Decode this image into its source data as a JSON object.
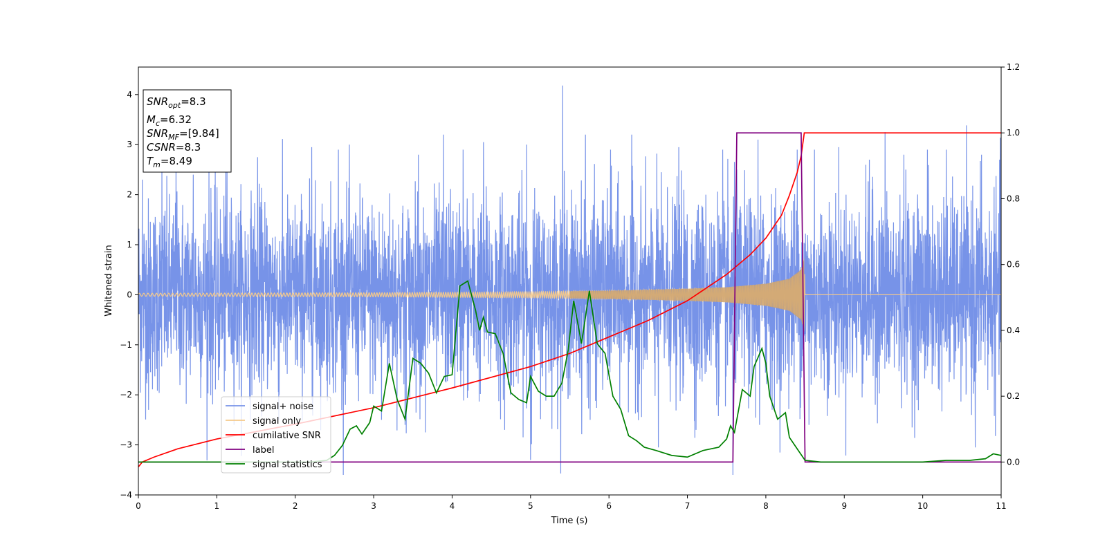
{
  "chart_data": {
    "type": "line",
    "xlabel": "Time (s)",
    "ylabel": "Whitened strain",
    "xlim": [
      0,
      11
    ],
    "ylim": [
      -4,
      4.55
    ],
    "y2lim": [
      -0.1,
      1.2
    ],
    "x_ticks": [
      0,
      1,
      2,
      3,
      4,
      5,
      6,
      7,
      8,
      9,
      10,
      11
    ],
    "y_ticks": [
      -4,
      -3,
      -2,
      -1,
      0,
      1,
      2,
      3,
      4
    ],
    "y2_ticks": [
      0.0,
      0.2,
      0.4,
      0.6,
      0.8,
      1.0,
      1.2
    ],
    "grid": false,
    "legend_position": "lower-left",
    "info_box": {
      "snr_opt_base": "SNR",
      "snr_opt_sub": "opt",
      "snr_opt_val": "=8.3",
      "mc_base": "M",
      "mc_sub": "c",
      "mc_val": "=6.32",
      "snr_mf_base": "SNR",
      "snr_mf_sub": "MF",
      "snr_mf_val": "=[9.84]",
      "csnr_base": "CSNR",
      "csnr_val": "=8.3",
      "tm_base": "T",
      "tm_sub": "m",
      "tm_val": "=8.49"
    },
    "series": [
      {
        "name": "signal+ noise",
        "color": "#7793e8",
        "axis": "left",
        "kind": "noise",
        "noise_std": 0.95,
        "spikes": [
          [
            0.05,
            2.3
          ],
          [
            0.13,
            -2.3
          ],
          [
            0.3,
            2.6
          ],
          [
            0.48,
            2.7
          ],
          [
            0.7,
            2.4
          ],
          [
            0.9,
            2.5
          ],
          [
            1.13,
            2.9
          ],
          [
            1.22,
            -2.6
          ],
          [
            1.52,
            2.75
          ],
          [
            1.79,
            -2.5
          ],
          [
            2.21,
            2.95
          ],
          [
            2.55,
            2.9
          ],
          [
            3.1,
            -2.5
          ],
          [
            3.4,
            -2.6
          ],
          [
            3.57,
            2.8
          ],
          [
            3.66,
            -2.75
          ],
          [
            3.89,
            3.2
          ],
          [
            4.14,
            2.9
          ],
          [
            4.4,
            3.05
          ],
          [
            4.67,
            -2.7
          ],
          [
            4.95,
            3.0
          ],
          [
            5.0,
            -3.3
          ],
          [
            5.41,
            4.18
          ],
          [
            5.7,
            3.2
          ],
          [
            5.76,
            -2.5
          ],
          [
            6.02,
            2.9
          ],
          [
            6.29,
            3.2
          ],
          [
            6.63,
            -3.05
          ],
          [
            6.89,
            2.95
          ],
          [
            7.11,
            -2.7
          ],
          [
            7.45,
            2.9
          ],
          [
            7.58,
            -3.6
          ],
          [
            7.63,
            2.5
          ],
          [
            7.9,
            3.1
          ],
          [
            7.92,
            -2.6
          ],
          [
            8.4,
            2.9
          ],
          [
            8.55,
            -2.6
          ],
          [
            8.62,
            2.9
          ],
          [
            8.93,
            2.95
          ],
          [
            9.32,
            2.7
          ],
          [
            9.52,
            3.25
          ],
          [
            9.76,
            2.8
          ],
          [
            10.06,
            2.9
          ],
          [
            10.3,
            2.9
          ],
          [
            10.67,
            -3.05
          ],
          [
            10.75,
            2.8
          ],
          [
            10.98,
            2.7
          ]
        ]
      },
      {
        "name": "signal only",
        "color": "#f5c98a",
        "axis": "left",
        "kind": "chirp",
        "envelope": [
          [
            0,
            0.03
          ],
          [
            3,
            0.04
          ],
          [
            5,
            0.06
          ],
          [
            6,
            0.08
          ],
          [
            7,
            0.12
          ],
          [
            7.5,
            0.15
          ],
          [
            8.0,
            0.22
          ],
          [
            8.3,
            0.32
          ],
          [
            8.45,
            0.5
          ],
          [
            8.49,
            0.75
          ],
          [
            8.5,
            0
          ]
        ],
        "end": 8.5
      },
      {
        "name": "cumilative SNR",
        "color": "#ff0000",
        "axis": "right",
        "points": [
          [
            0,
            -0.015
          ],
          [
            0.05,
            0.0
          ],
          [
            0.2,
            0.015
          ],
          [
            0.5,
            0.04
          ],
          [
            1,
            0.07
          ],
          [
            2,
            0.115
          ],
          [
            3,
            0.165
          ],
          [
            4,
            0.225
          ],
          [
            5,
            0.29
          ],
          [
            5.5,
            0.33
          ],
          [
            6,
            0.38
          ],
          [
            6.5,
            0.43
          ],
          [
            7,
            0.49
          ],
          [
            7.5,
            0.57
          ],
          [
            7.8,
            0.63
          ],
          [
            8.0,
            0.68
          ],
          [
            8.2,
            0.75
          ],
          [
            8.3,
            0.81
          ],
          [
            8.4,
            0.88
          ],
          [
            8.45,
            0.93
          ],
          [
            8.49,
            1.0
          ],
          [
            11,
            1.0
          ]
        ]
      },
      {
        "name": "label",
        "color": "#800080",
        "axis": "right",
        "points": [
          [
            0,
            0.0
          ],
          [
            7.58,
            0.0
          ],
          [
            7.63,
            1.0
          ],
          [
            8.45,
            1.0
          ],
          [
            8.5,
            0.0
          ],
          [
            11,
            0.0
          ]
        ]
      },
      {
        "name": "signal statistics",
        "color": "#008000",
        "axis": "right",
        "points": [
          [
            0,
            0.0
          ],
          [
            2.2,
            0.0
          ],
          [
            2.4,
            0.005
          ],
          [
            2.5,
            0.02
          ],
          [
            2.6,
            0.05
          ],
          [
            2.7,
            0.1
          ],
          [
            2.78,
            0.11
          ],
          [
            2.85,
            0.085
          ],
          [
            2.95,
            0.12
          ],
          [
            3.0,
            0.17
          ],
          [
            3.1,
            0.155
          ],
          [
            3.2,
            0.3
          ],
          [
            3.3,
            0.19
          ],
          [
            3.4,
            0.13
          ],
          [
            3.5,
            0.315
          ],
          [
            3.6,
            0.3
          ],
          [
            3.7,
            0.27
          ],
          [
            3.8,
            0.21
          ],
          [
            3.9,
            0.26
          ],
          [
            4.0,
            0.265
          ],
          [
            4.1,
            0.535
          ],
          [
            4.2,
            0.55
          ],
          [
            4.3,
            0.46
          ],
          [
            4.35,
            0.4
          ],
          [
            4.4,
            0.44
          ],
          [
            4.45,
            0.395
          ],
          [
            4.55,
            0.39
          ],
          [
            4.65,
            0.33
          ],
          [
            4.75,
            0.21
          ],
          [
            4.85,
            0.19
          ],
          [
            4.95,
            0.18
          ],
          [
            5.0,
            0.26
          ],
          [
            5.1,
            0.215
          ],
          [
            5.2,
            0.2
          ],
          [
            5.3,
            0.2
          ],
          [
            5.4,
            0.24
          ],
          [
            5.48,
            0.34
          ],
          [
            5.55,
            0.49
          ],
          [
            5.65,
            0.36
          ],
          [
            5.75,
            0.52
          ],
          [
            5.85,
            0.36
          ],
          [
            5.95,
            0.33
          ],
          [
            6.05,
            0.2
          ],
          [
            6.15,
            0.16
          ],
          [
            6.25,
            0.08
          ],
          [
            6.35,
            0.065
          ],
          [
            6.45,
            0.045
          ],
          [
            6.6,
            0.035
          ],
          [
            6.8,
            0.02
          ],
          [
            7.0,
            0.015
          ],
          [
            7.2,
            0.035
          ],
          [
            7.4,
            0.045
          ],
          [
            7.5,
            0.07
          ],
          [
            7.55,
            0.11
          ],
          [
            7.6,
            0.09
          ],
          [
            7.7,
            0.22
          ],
          [
            7.8,
            0.2
          ],
          [
            7.85,
            0.29
          ],
          [
            7.95,
            0.345
          ],
          [
            8.0,
            0.3
          ],
          [
            8.05,
            0.2
          ],
          [
            8.15,
            0.13
          ],
          [
            8.25,
            0.15
          ],
          [
            8.3,
            0.075
          ],
          [
            8.4,
            0.04
          ],
          [
            8.5,
            0.005
          ],
          [
            8.7,
            0.0
          ],
          [
            9.5,
            0.0
          ],
          [
            10.0,
            0.0
          ],
          [
            10.3,
            0.005
          ],
          [
            10.6,
            0.005
          ],
          [
            10.8,
            0.01
          ],
          [
            10.9,
            0.025
          ],
          [
            11,
            0.02
          ]
        ]
      }
    ]
  }
}
